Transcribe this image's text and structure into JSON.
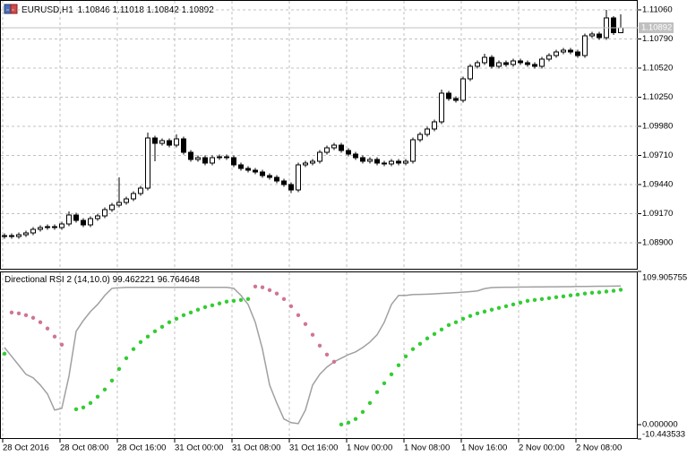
{
  "chart_data": [
    {
      "type": "candlestick",
      "symbol": "EURUSD,H1",
      "categories": [
        "28 Oct 2016",
        null,
        null,
        null,
        null,
        null,
        null,
        null,
        "28 Oct 08:00",
        null,
        null,
        null,
        null,
        null,
        null,
        null,
        "28 Oct 16:00",
        null,
        null,
        null,
        null,
        null,
        null,
        null,
        "31 Oct 00:00",
        null,
        null,
        null,
        null,
        null,
        null,
        null,
        "31 Oct 08:00",
        null,
        null,
        null,
        null,
        null,
        null,
        null,
        "31 Oct 16:00",
        null,
        null,
        null,
        null,
        null,
        null,
        null,
        "1 Nov 00:00",
        null,
        null,
        null,
        null,
        null,
        null,
        null,
        "1 Nov 08:00",
        null,
        null,
        null,
        null,
        null,
        null,
        null,
        "1 Nov 16:00",
        null,
        null,
        null,
        null,
        null,
        null,
        null,
        "2 Nov 00:00",
        null,
        null,
        null,
        null,
        null,
        null,
        null,
        "2 Nov 08:00",
        null,
        null,
        null,
        null,
        null,
        null
      ],
      "open": [
        1.08958,
        1.08966,
        1.08958,
        1.08974,
        1.08991,
        1.09024,
        1.09041,
        1.09049,
        1.09041,
        1.09074,
        1.09157,
        1.09107,
        1.09066,
        1.09124,
        1.09149,
        1.09207,
        1.09248,
        1.09273,
        1.09307,
        1.09356,
        1.09406,
        1.09872,
        1.09822,
        1.09847,
        1.09805,
        1.09863,
        1.09739,
        1.09672,
        1.09689,
        1.09639,
        1.09689,
        1.09697,
        1.09689,
        1.09622,
        1.09589,
        1.09572,
        1.09556,
        1.09523,
        1.09506,
        1.09473,
        1.0944,
        1.0939,
        1.09622,
        1.09639,
        1.09656,
        1.09739,
        1.0978,
        1.09805,
        1.09755,
        1.09722,
        1.09689,
        1.09656,
        1.09672,
        1.09639,
        1.09631,
        1.09656,
        1.09639,
        1.09656,
        1.09855,
        1.09905,
        1.09955,
        1.10021,
        1.10287,
        1.10237,
        1.10221,
        1.1042,
        1.10536,
        1.1057,
        1.1062,
        1.10536,
        1.1057,
        1.10553,
        1.10586,
        1.1057,
        1.10553,
        1.10536,
        1.10603,
        1.10636,
        1.10669,
        1.10686,
        1.10669,
        1.10636,
        1.10819,
        1.10836,
        1.10802,
        1.10985,
        1.10846
      ],
      "high": [
        1.08986,
        1.08986,
        1.08994,
        1.09011,
        1.09044,
        1.09061,
        1.09069,
        1.09069,
        1.09094,
        1.0919,
        1.09177,
        1.09127,
        1.09144,
        1.09169,
        1.09227,
        1.09268,
        1.09506,
        1.09327,
        1.09376,
        1.09426,
        1.09922,
        1.09892,
        1.09867,
        1.09867,
        1.09905,
        1.09883,
        1.09759,
        1.09709,
        1.09709,
        1.09709,
        1.09717,
        1.09717,
        1.09709,
        1.09642,
        1.09609,
        1.09592,
        1.09576,
        1.09543,
        1.09526,
        1.09493,
        1.0946,
        1.09642,
        1.09659,
        1.09676,
        1.09759,
        1.098,
        1.09825,
        1.09825,
        1.09775,
        1.09742,
        1.09709,
        1.09692,
        1.09692,
        1.09659,
        1.09676,
        1.09676,
        1.09676,
        1.09875,
        1.09925,
        1.09975,
        1.10041,
        1.1032,
        1.10307,
        1.10257,
        1.1044,
        1.10556,
        1.1059,
        1.10653,
        1.1064,
        1.1059,
        1.1059,
        1.10606,
        1.10606,
        1.1059,
        1.10573,
        1.10623,
        1.10656,
        1.10689,
        1.10706,
        1.10706,
        1.10689,
        1.10839,
        1.10856,
        1.10856,
        1.1106,
        1.11002,
        1.11018
      ],
      "low": [
        1.08938,
        1.08938,
        1.08938,
        1.08954,
        1.08971,
        1.09004,
        1.09021,
        1.09021,
        1.09021,
        1.09054,
        1.09087,
        1.09046,
        1.09046,
        1.09104,
        1.09129,
        1.09187,
        1.09228,
        1.09253,
        1.09287,
        1.09336,
        1.09386,
        1.09656,
        1.09802,
        1.09785,
        1.09785,
        1.09719,
        1.09652,
        1.09652,
        1.09619,
        1.09619,
        1.09669,
        1.09669,
        1.09602,
        1.09569,
        1.09552,
        1.09536,
        1.09503,
        1.09486,
        1.09453,
        1.0942,
        1.0936,
        1.0937,
        1.09602,
        1.09619,
        1.09636,
        1.09719,
        1.0976,
        1.09735,
        1.09702,
        1.09669,
        1.09636,
        1.09636,
        1.09619,
        1.09611,
        1.09611,
        1.09619,
        1.09619,
        1.09636,
        1.09835,
        1.09885,
        1.09935,
        1.10001,
        1.10217,
        1.10201,
        1.10201,
        1.104,
        1.10516,
        1.1055,
        1.10516,
        1.10516,
        1.10533,
        1.10533,
        1.1055,
        1.10533,
        1.10516,
        1.10516,
        1.10583,
        1.10616,
        1.10649,
        1.10649,
        1.10616,
        1.10616,
        1.10799,
        1.10782,
        1.10782,
        1.10826,
        1.10842
      ],
      "close": [
        1.08966,
        1.08958,
        1.08974,
        1.08991,
        1.09024,
        1.09041,
        1.09049,
        1.09041,
        1.09074,
        1.09157,
        1.09107,
        1.09066,
        1.09124,
        1.09149,
        1.09207,
        1.09248,
        1.09273,
        1.09307,
        1.09356,
        1.09406,
        1.09872,
        1.09822,
        1.09847,
        1.09805,
        1.09863,
        1.09739,
        1.09672,
        1.09689,
        1.09639,
        1.09689,
        1.09697,
        1.09689,
        1.09622,
        1.09589,
        1.09572,
        1.09556,
        1.09523,
        1.09506,
        1.09473,
        1.0944,
        1.0939,
        1.09622,
        1.09639,
        1.09656,
        1.09739,
        1.0978,
        1.09805,
        1.09755,
        1.09722,
        1.09689,
        1.09656,
        1.09672,
        1.09639,
        1.09631,
        1.09656,
        1.09639,
        1.09656,
        1.09855,
        1.09905,
        1.09955,
        1.10021,
        1.10287,
        1.10237,
        1.10221,
        1.1042,
        1.10536,
        1.1057,
        1.1062,
        1.10536,
        1.1057,
        1.10553,
        1.10586,
        1.1057,
        1.10553,
        1.10536,
        1.10603,
        1.10636,
        1.10669,
        1.10686,
        1.10669,
        1.10636,
        1.10819,
        1.10836,
        1.10802,
        1.10985,
        1.10846,
        1.10892
      ],
      "up_color": "#ffffff",
      "down_color": "#000000",
      "outline_color": "#000000",
      "ylim": [
        1.0865,
        1.11151
      ],
      "yticks": [
        {
          "value": 1.1106,
          "label": "1.11060"
        },
        {
          "value": 1.1079,
          "label": "1.10790"
        },
        {
          "value": 1.1052,
          "label": "1.10520"
        },
        {
          "value": 1.1025,
          "label": "1.10250"
        },
        {
          "value": 1.0998,
          "label": "1.09980"
        },
        {
          "value": 1.0971,
          "label": "1.09710"
        },
        {
          "value": 1.0944,
          "label": "1.09440"
        },
        {
          "value": 1.0917,
          "label": "1.09170"
        },
        {
          "value": 1.089,
          "label": "1.08900"
        }
      ],
      "grid": "both"
    },
    {
      "type": "line",
      "title": "Directional RSI 2 (14,10.0)",
      "series": [
        {
          "style": "line",
          "color": "#a0a0a0",
          "values": [
            55.3,
            48.9,
            42.5,
            36.0,
            33.5,
            28.3,
            21.9,
            10.3,
            11.6,
            34.7,
            66.9,
            74.6,
            81.1,
            86.2,
            92.7,
            97.8,
            98.2,
            98.5,
            98.5,
            98.5,
            98.5,
            98.5,
            98.5,
            98.5,
            98.5,
            98.5,
            98.5,
            98.5,
            98.5,
            98.5,
            98.5,
            98.5,
            97.8,
            92.7,
            86.2,
            73.4,
            54.1,
            28.3,
            15.4,
            3.9,
            1.3,
            0.6,
            10.3,
            28.3,
            36.0,
            41.2,
            45.0,
            47.6,
            50.2,
            52.1,
            55.3,
            59.2,
            64.4,
            73.4,
            86.2,
            92.7,
            92.7,
            93.3,
            93.4,
            93.6,
            93.8,
            94.1,
            94.4,
            94.7,
            95.0,
            95.4,
            95.9,
            97.6,
            98.3,
            98.5,
            98.6,
            98.6,
            98.7,
            98.7,
            98.8,
            98.8,
            98.9,
            98.9,
            99.0,
            99.0,
            99.1,
            99.1,
            99.2,
            99.3,
            99.3,
            99.4,
            99.462221
          ]
        },
        {
          "style": "dots",
          "color": "#cf7596",
          "values": [
            null,
            80.4,
            79.8,
            78.5,
            76.6,
            73.4,
            68.9,
            63.1,
            57.3,
            null,
            null,
            null,
            null,
            null,
            null,
            null,
            null,
            null,
            null,
            null,
            null,
            null,
            null,
            null,
            null,
            null,
            null,
            null,
            null,
            null,
            null,
            null,
            null,
            null,
            null,
            99.1,
            98.5,
            96.5,
            94.0,
            90.1,
            84.9,
            78.5,
            72.1,
            64.4,
            56.6,
            50.2,
            45.0,
            null,
            null,
            null,
            null,
            null,
            null,
            null,
            null,
            null,
            null,
            null,
            null,
            null,
            null,
            null,
            null,
            null,
            null,
            null,
            null,
            null,
            null,
            null,
            null,
            null,
            null,
            null,
            null,
            null,
            null,
            null,
            null,
            null,
            null,
            null,
            null,
            null,
            null,
            null,
            null
          ]
        },
        {
          "style": "dots",
          "color": "#32cd32",
          "values": [
            50.8,
            null,
            null,
            null,
            null,
            null,
            null,
            null,
            null,
            null,
            10.9,
            12.2,
            15.4,
            19.9,
            25.1,
            31.5,
            39.9,
            47.6,
            54.1,
            59.2,
            63.1,
            66.9,
            70.1,
            73.4,
            75.9,
            78.5,
            80.4,
            82.4,
            84.3,
            85.6,
            86.9,
            88.2,
            88.8,
            89.4,
            90.1,
            null,
            null,
            null,
            null,
            null,
            null,
            null,
            null,
            null,
            null,
            null,
            null,
            0.0,
            1.3,
            3.9,
            9.0,
            15.4,
            23.2,
            29.6,
            36.0,
            42.5,
            48.9,
            54.1,
            57.9,
            61.8,
            65.0,
            68.2,
            71.4,
            73.4,
            75.9,
            77.9,
            79.8,
            81.1,
            82.4,
            83.7,
            84.9,
            86.2,
            87.5,
            88.8,
            89.4,
            90.1,
            90.7,
            91.4,
            92.0,
            92.7,
            93.3,
            94.0,
            94.6,
            94.9,
            95.5,
            96.0,
            96.764648
          ]
        }
      ],
      "ylim": [
        -10.443533,
        109.905755
      ],
      "yticks": [
        109.905755,
        {
          "value": 0,
          "label": "0.000000"
        },
        -10.443533
      ],
      "grid": "x"
    }
  ]
}
